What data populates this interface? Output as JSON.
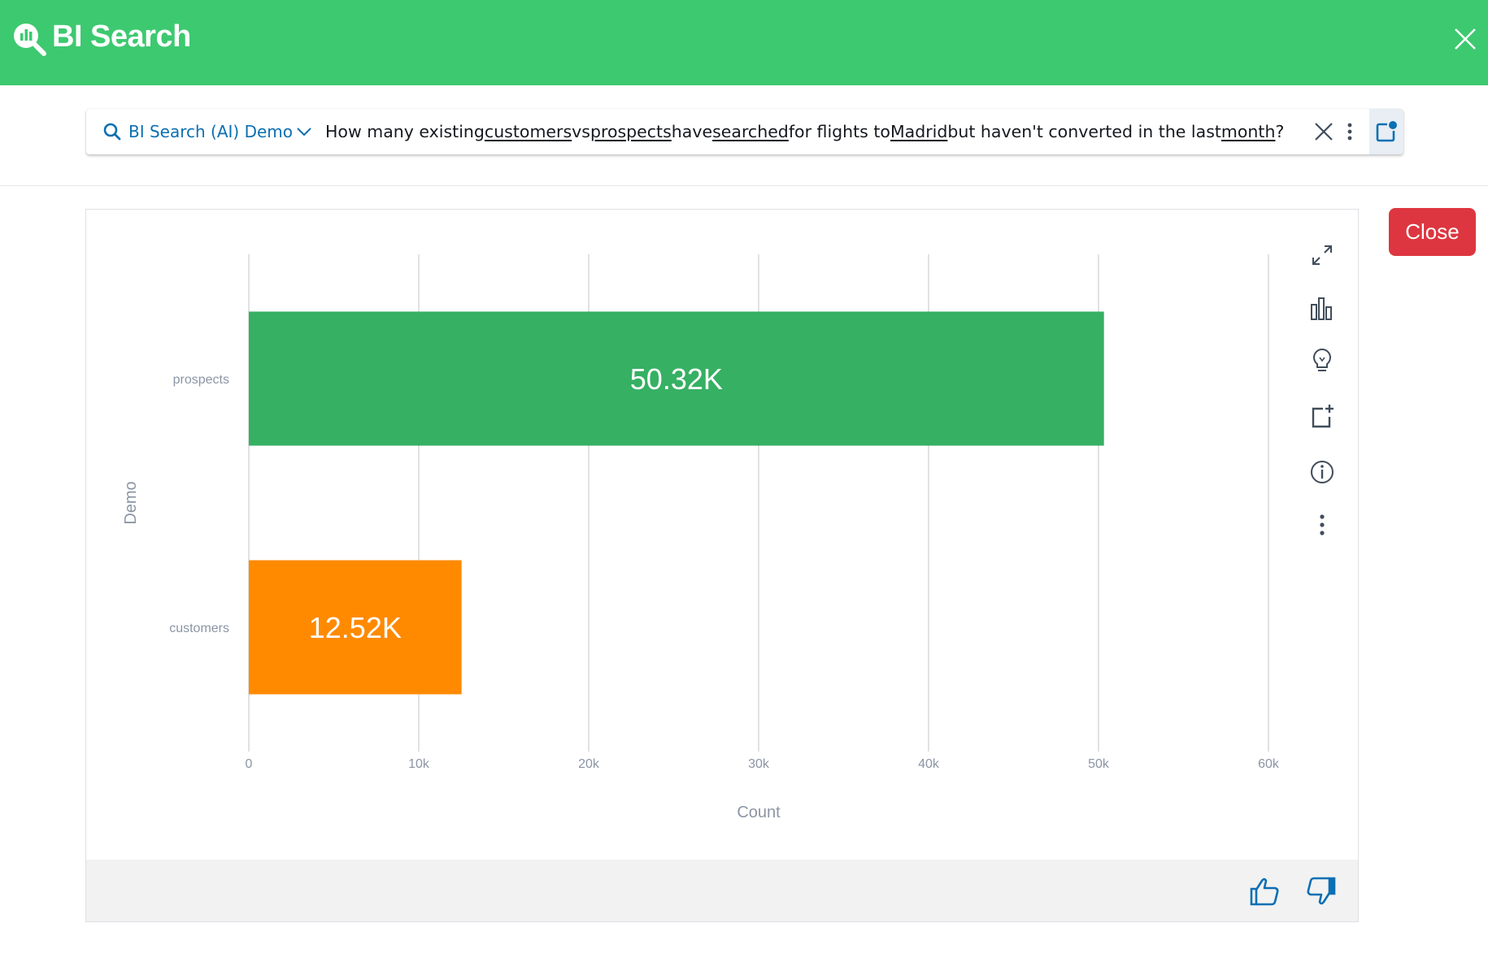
{
  "header": {
    "title": "BI Search",
    "logo_icon": "bi-search-logo-icon",
    "close_icon": "close-icon"
  },
  "search": {
    "source": "BI Search (AI) Demo",
    "query_parts": [
      {
        "text": "How many existing ",
        "u": false
      },
      {
        "text": "customers",
        "u": true
      },
      {
        "text": " vs ",
        "u": false
      },
      {
        "text": "prospects",
        "u": true
      },
      {
        "text": " have ",
        "u": false
      },
      {
        "text": "searched",
        "u": true
      },
      {
        "text": " for flights to ",
        "u": false
      },
      {
        "text": "Madrid",
        "u": true
      },
      {
        "text": " but haven't converted in the last ",
        "u": false
      },
      {
        "text": "month",
        "u": true
      },
      {
        "text": "?",
        "u": false
      }
    ]
  },
  "close_button": "Close",
  "colors": {
    "header": "#3dc970",
    "accent": "#0b6fb3",
    "close": "#dd3640"
  },
  "chart_data": {
    "type": "bar",
    "orientation": "horizontal",
    "categories": [
      "prospects",
      "customers"
    ],
    "values": [
      50320,
      12520
    ],
    "value_labels": [
      "50.32K",
      "12.52K"
    ],
    "colors": [
      "#36b063",
      "#ff8a00"
    ],
    "xlabel": "Count",
    "ylabel": "Demo",
    "xlim": [
      0,
      60000
    ],
    "xticks": [
      0,
      10000,
      20000,
      30000,
      40000,
      50000,
      60000
    ],
    "xtick_labels": [
      "0",
      "10k",
      "20k",
      "30k",
      "40k",
      "50k",
      "60k"
    ],
    "grid": true
  }
}
